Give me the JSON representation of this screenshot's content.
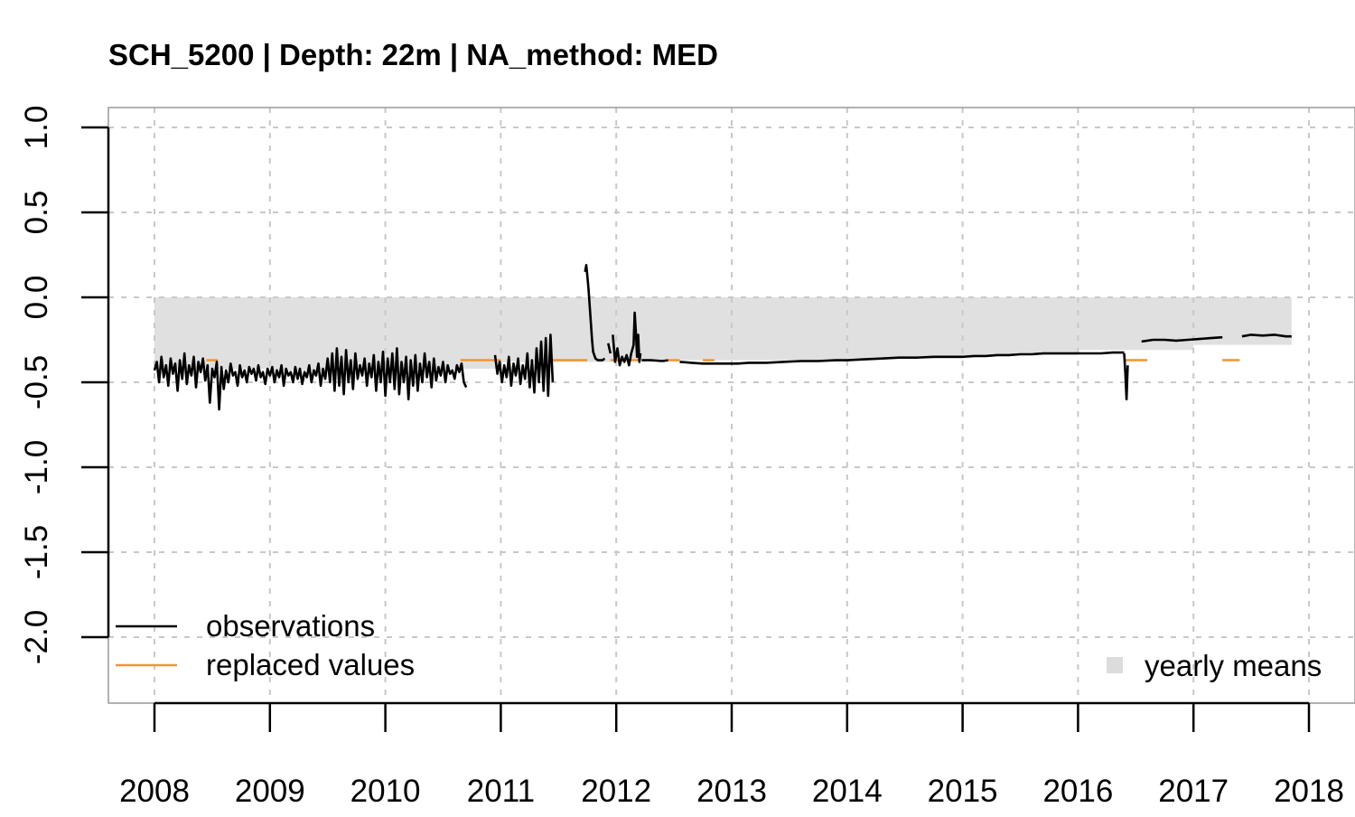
{
  "chart_data": {
    "type": "line",
    "title": "SCH_5200 | Depth: 22m | NA_method: MED",
    "xlabel": "",
    "ylabel": "",
    "xlim": [
      2008.0,
      2018.0
    ],
    "ylim": [
      -2.0,
      1.0
    ],
    "x_ticks": [
      "2008",
      "2009",
      "2010",
      "2011",
      "2012",
      "2013",
      "2014",
      "2015",
      "2016",
      "2017",
      "2018"
    ],
    "y_ticks": [
      "1.0",
      "0.5",
      "0.0",
      "-0.5",
      "-1.0",
      "-1.5",
      "-2.0"
    ],
    "grid": true,
    "legend": {
      "position": "bottom",
      "items": [
        {
          "label": "observations",
          "color": "#000000",
          "kind": "line"
        },
        {
          "label": "replaced values",
          "color": "#f0952e",
          "kind": "line"
        },
        {
          "label": "yearly means",
          "color": "#dcdcdc",
          "kind": "box"
        }
      ]
    },
    "series": [
      {
        "name": "yearly means",
        "color": "#e0e0e0",
        "kind": "bars",
        "x_start": [
          2008.0,
          2009.0,
          2010.0,
          2011.0,
          2012.0,
          2013.0,
          2014.0,
          2015.0,
          2016.0,
          2017.0
        ],
        "x_end": [
          2009.0,
          2010.0,
          2011.0,
          2012.0,
          2013.0,
          2014.0,
          2015.0,
          2016.0,
          2017.0,
          2017.85
        ],
        "values": [
          -0.42,
          -0.43,
          -0.42,
          -0.38,
          -0.37,
          -0.37,
          -0.36,
          -0.34,
          -0.31,
          -0.28
        ]
      },
      {
        "name": "replaced values",
        "color": "#f0952e",
        "kind": "segments",
        "segments": [
          [
            2008.45,
            2008.55,
            -0.37
          ],
          [
            2010.65,
            2011.0,
            -0.37
          ],
          [
            2011.45,
            2011.75,
            -0.37
          ],
          [
            2011.95,
            2012.2,
            -0.37
          ],
          [
            2012.45,
            2012.55,
            -0.37
          ],
          [
            2012.75,
            2012.85,
            -0.37
          ],
          [
            2016.4,
            2016.6,
            -0.37
          ],
          [
            2017.25,
            2017.4,
            -0.37
          ]
        ]
      },
      {
        "name": "observations",
        "color": "#000000",
        "kind": "line",
        "segments": [
          {
            "x": [
              2008.0,
              2008.02,
              2008.04,
              2008.06,
              2008.08,
              2008.1,
              2008.12,
              2008.14,
              2008.16,
              2008.18,
              2008.2,
              2008.22,
              2008.24,
              2008.26,
              2008.28,
              2008.3,
              2008.32,
              2008.34,
              2008.36,
              2008.38,
              2008.4,
              2008.42,
              2008.44,
              2008.46,
              2008.48,
              2008.5,
              2008.52,
              2008.54,
              2008.56,
              2008.58,
              2008.6,
              2008.62,
              2008.64,
              2008.66,
              2008.68,
              2008.7,
              2008.72,
              2008.74,
              2008.76,
              2008.78,
              2008.8,
              2008.82,
              2008.84,
              2008.86,
              2008.88,
              2008.9,
              2008.92,
              2008.94,
              2008.96,
              2008.98,
              2009.0,
              2009.02,
              2009.04,
              2009.06,
              2009.08,
              2009.1,
              2009.12,
              2009.14,
              2009.16,
              2009.18,
              2009.2,
              2009.22,
              2009.24,
              2009.26,
              2009.28,
              2009.3,
              2009.32,
              2009.34,
              2009.36,
              2009.38,
              2009.4,
              2009.42,
              2009.44,
              2009.46,
              2009.48,
              2009.5,
              2009.52,
              2009.54,
              2009.56,
              2009.58,
              2009.6,
              2009.62,
              2009.64,
              2009.66,
              2009.68,
              2009.7,
              2009.72,
              2009.74,
              2009.76,
              2009.78,
              2009.8,
              2009.82,
              2009.84,
              2009.86,
              2009.88,
              2009.9,
              2009.92,
              2009.94,
              2009.96,
              2009.98,
              2010.0,
              2010.02,
              2010.04,
              2010.06,
              2010.08,
              2010.1,
              2010.12,
              2010.14,
              2010.16,
              2010.18,
              2010.2,
              2010.22,
              2010.24,
              2010.26,
              2010.28,
              2010.3,
              2010.32,
              2010.34,
              2010.36,
              2010.38,
              2010.4,
              2010.42,
              2010.44,
              2010.46,
              2010.48,
              2010.5,
              2010.52,
              2010.54,
              2010.56,
              2010.58,
              2010.6,
              2010.62,
              2010.64,
              2010.66,
              2010.68,
              2010.7
            ],
            "y": [
              -0.43,
              -0.38,
              -0.5,
              -0.35,
              -0.47,
              -0.4,
              -0.52,
              -0.36,
              -0.45,
              -0.39,
              -0.55,
              -0.37,
              -0.48,
              -0.33,
              -0.51,
              -0.4,
              -0.46,
              -0.35,
              -0.53,
              -0.38,
              -0.44,
              -0.36,
              -0.49,
              -0.4,
              -0.62,
              -0.42,
              -0.47,
              -0.38,
              -0.66,
              -0.41,
              -0.54,
              -0.43,
              -0.5,
              -0.39,
              -0.46,
              -0.44,
              -0.52,
              -0.4,
              -0.47,
              -0.43,
              -0.5,
              -0.41,
              -0.45,
              -0.42,
              -0.49,
              -0.4,
              -0.47,
              -0.44,
              -0.51,
              -0.42,
              -0.46,
              -0.41,
              -0.5,
              -0.43,
              -0.47,
              -0.4,
              -0.52,
              -0.42,
              -0.46,
              -0.44,
              -0.5,
              -0.41,
              -0.48,
              -0.42,
              -0.51,
              -0.44,
              -0.47,
              -0.4,
              -0.5,
              -0.43,
              -0.46,
              -0.39,
              -0.52,
              -0.42,
              -0.48,
              -0.36,
              -0.5,
              -0.33,
              -0.55,
              -0.3,
              -0.52,
              -0.35,
              -0.57,
              -0.31,
              -0.5,
              -0.37,
              -0.54,
              -0.33,
              -0.48,
              -0.4,
              -0.46,
              -0.36,
              -0.52,
              -0.39,
              -0.47,
              -0.34,
              -0.55,
              -0.38,
              -0.5,
              -0.32,
              -0.58,
              -0.36,
              -0.5,
              -0.33,
              -0.54,
              -0.3,
              -0.57,
              -0.38,
              -0.5,
              -0.35,
              -0.6,
              -0.37,
              -0.52,
              -0.34,
              -0.55,
              -0.39,
              -0.5,
              -0.33,
              -0.47,
              -0.38,
              -0.53,
              -0.36,
              -0.49,
              -0.41,
              -0.46,
              -0.38,
              -0.5,
              -0.4,
              -0.45,
              -0.43,
              -0.48,
              -0.4,
              -0.44,
              -0.39,
              -0.5,
              -0.53
            ]
          },
          {
            "x": [
              2010.95,
              2010.97,
              2010.99,
              2011.01,
              2011.03,
              2011.05,
              2011.07,
              2011.09,
              2011.11,
              2011.13,
              2011.15,
              2011.17,
              2011.19,
              2011.21,
              2011.23,
              2011.25,
              2011.27,
              2011.29,
              2011.31,
              2011.33,
              2011.35,
              2011.37,
              2011.39,
              2011.41,
              2011.43,
              2011.45
            ],
            "y": [
              -0.34,
              -0.45,
              -0.38,
              -0.5,
              -0.4,
              -0.47,
              -0.35,
              -0.52,
              -0.39,
              -0.46,
              -0.36,
              -0.51,
              -0.4,
              -0.48,
              -0.33,
              -0.53,
              -0.37,
              -0.56,
              -0.3,
              -0.5,
              -0.26,
              -0.55,
              -0.24,
              -0.58,
              -0.22,
              -0.5
            ]
          },
          {
            "x": [
              2011.73,
              2011.74,
              2011.75,
              2011.76,
              2011.77,
              2011.78,
              2011.79,
              2011.8,
              2011.82,
              2011.84,
              2011.86,
              2011.88,
              2011.9
            ],
            "y": [
              0.15,
              0.19,
              0.12,
              0.05,
              -0.05,
              -0.15,
              -0.25,
              -0.32,
              -0.36,
              -0.37,
              -0.37,
              -0.37,
              -0.36
            ]
          },
          {
            "x": [
              2011.93,
              2011.94,
              2011.95
            ],
            "y": [
              -0.27,
              -0.3,
              -0.33
            ]
          },
          {
            "x": [
              2011.97,
              2011.99,
              2012.01,
              2012.03,
              2012.05,
              2012.07,
              2012.09,
              2012.11,
              2012.13,
              2012.15,
              2012.16,
              2012.17,
              2012.18,
              2012.19,
              2012.2,
              2012.21
            ],
            "y": [
              -0.22,
              -0.38,
              -0.3,
              -0.4,
              -0.35,
              -0.38,
              -0.34,
              -0.4,
              -0.33,
              -0.28,
              -0.09,
              -0.2,
              -0.35,
              -0.22,
              -0.38,
              -0.33
            ]
          },
          {
            "x": [
              2012.22,
              2012.3,
              2012.4,
              2012.45
            ],
            "y": [
              -0.37,
              -0.37,
              -0.375,
              -0.37
            ]
          },
          {
            "x": [
              2012.55,
              2012.65,
              2012.75,
              2012.85,
              2012.95,
              2013.05,
              2013.15,
              2013.3,
              2013.45,
              2013.6,
              2013.75,
              2013.9,
              2014.0,
              2014.15,
              2014.3,
              2014.45,
              2014.6,
              2014.75,
              2014.9,
              2015.0,
              2015.1,
              2015.2,
              2015.3,
              2015.4,
              2015.5,
              2015.6,
              2015.7,
              2015.8,
              2015.9,
              2016.0,
              2016.1,
              2016.2,
              2016.3,
              2016.4
            ],
            "y": [
              -0.38,
              -0.385,
              -0.39,
              -0.39,
              -0.39,
              -0.39,
              -0.385,
              -0.385,
              -0.38,
              -0.375,
              -0.375,
              -0.37,
              -0.37,
              -0.365,
              -0.36,
              -0.355,
              -0.355,
              -0.35,
              -0.35,
              -0.35,
              -0.345,
              -0.345,
              -0.34,
              -0.34,
              -0.335,
              -0.335,
              -0.33,
              -0.33,
              -0.33,
              -0.33,
              -0.33,
              -0.33,
              -0.325,
              -0.325
            ]
          },
          {
            "x": [
              2016.4,
              2016.41,
              2016.42,
              2016.43
            ],
            "y": [
              -0.33,
              -0.45,
              -0.6,
              -0.4
            ]
          },
          {
            "x": [
              2016.55,
              2016.65,
              2016.75,
              2016.85,
              2016.95,
              2017.05,
              2017.15,
              2017.25
            ],
            "y": [
              -0.26,
              -0.25,
              -0.25,
              -0.255,
              -0.25,
              -0.245,
              -0.24,
              -0.235
            ]
          },
          {
            "x": [
              2017.42,
              2017.5,
              2017.6,
              2017.7,
              2017.8,
              2017.85
            ],
            "y": [
              -0.23,
              -0.22,
              -0.225,
              -0.22,
              -0.23,
              -0.23
            ]
          }
        ]
      }
    ]
  }
}
